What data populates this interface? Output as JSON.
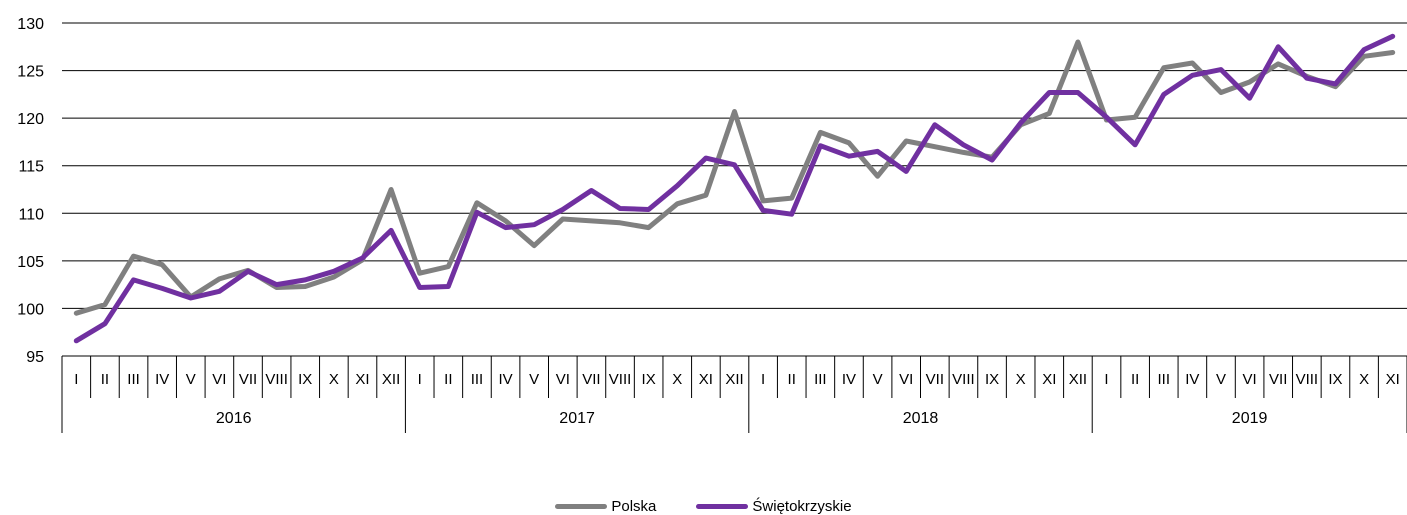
{
  "chart_data": {
    "type": "line",
    "ylim": [
      95,
      130
    ],
    "yticks": [
      95,
      100,
      105,
      110,
      115,
      120,
      125,
      130
    ],
    "grid": true,
    "legend_position": "bottom-center",
    "month_labels": [
      "I",
      "II",
      "III",
      "IV",
      "V",
      "VI",
      "VII",
      "VIII",
      "IX",
      "X",
      "XI",
      "XII",
      "I",
      "II",
      "III",
      "IV",
      "V",
      "VI",
      "VII",
      "VIII",
      "IX",
      "X",
      "XI",
      "XII",
      "I",
      "II",
      "III",
      "IV",
      "V",
      "VI",
      "VII",
      "VIII",
      "IX",
      "X",
      "XI",
      "XII",
      "I",
      "II",
      "III",
      "IV",
      "V",
      "VI",
      "VII",
      "VIII",
      "IX",
      "X",
      "XI"
    ],
    "year_groups": [
      {
        "label": "2016",
        "count": 12
      },
      {
        "label": "2017",
        "count": 12
      },
      {
        "label": "2018",
        "count": 12
      },
      {
        "label": "2019",
        "count": 11
      }
    ],
    "series": [
      {
        "name": "Polska",
        "color": "#808080",
        "values": [
          99.5,
          100.4,
          105.5,
          104.6,
          101.2,
          103.1,
          104.0,
          102.2,
          102.3,
          103.3,
          105.1,
          112.5,
          103.7,
          104.4,
          111.1,
          109.2,
          106.6,
          109.4,
          109.2,
          109.0,
          108.5,
          111.0,
          111.9,
          120.7,
          111.3,
          111.6,
          118.5,
          117.4,
          113.9,
          117.6,
          117.0,
          116.4,
          115.9,
          119.3,
          120.5,
          128.0,
          119.8,
          120.1,
          125.3,
          125.8,
          122.7,
          123.8,
          125.7,
          124.4,
          123.3,
          126.5,
          126.9
        ]
      },
      {
        "name": "Świętokrzyskie",
        "color": "#7030a0",
        "values": [
          96.6,
          98.4,
          103.0,
          102.1,
          101.1,
          101.8,
          103.9,
          102.5,
          103.0,
          103.9,
          105.3,
          108.2,
          102.2,
          102.3,
          110.1,
          108.5,
          108.8,
          110.4,
          112.4,
          110.5,
          110.4,
          112.9,
          115.8,
          115.1,
          110.3,
          109.9,
          117.1,
          116.0,
          116.5,
          114.4,
          119.3,
          117.2,
          115.6,
          119.5,
          122.7,
          122.7,
          120.1,
          117.2,
          122.5,
          124.5,
          125.1,
          122.1,
          127.5,
          124.2,
          123.6,
          127.2,
          128.6
        ]
      }
    ]
  }
}
